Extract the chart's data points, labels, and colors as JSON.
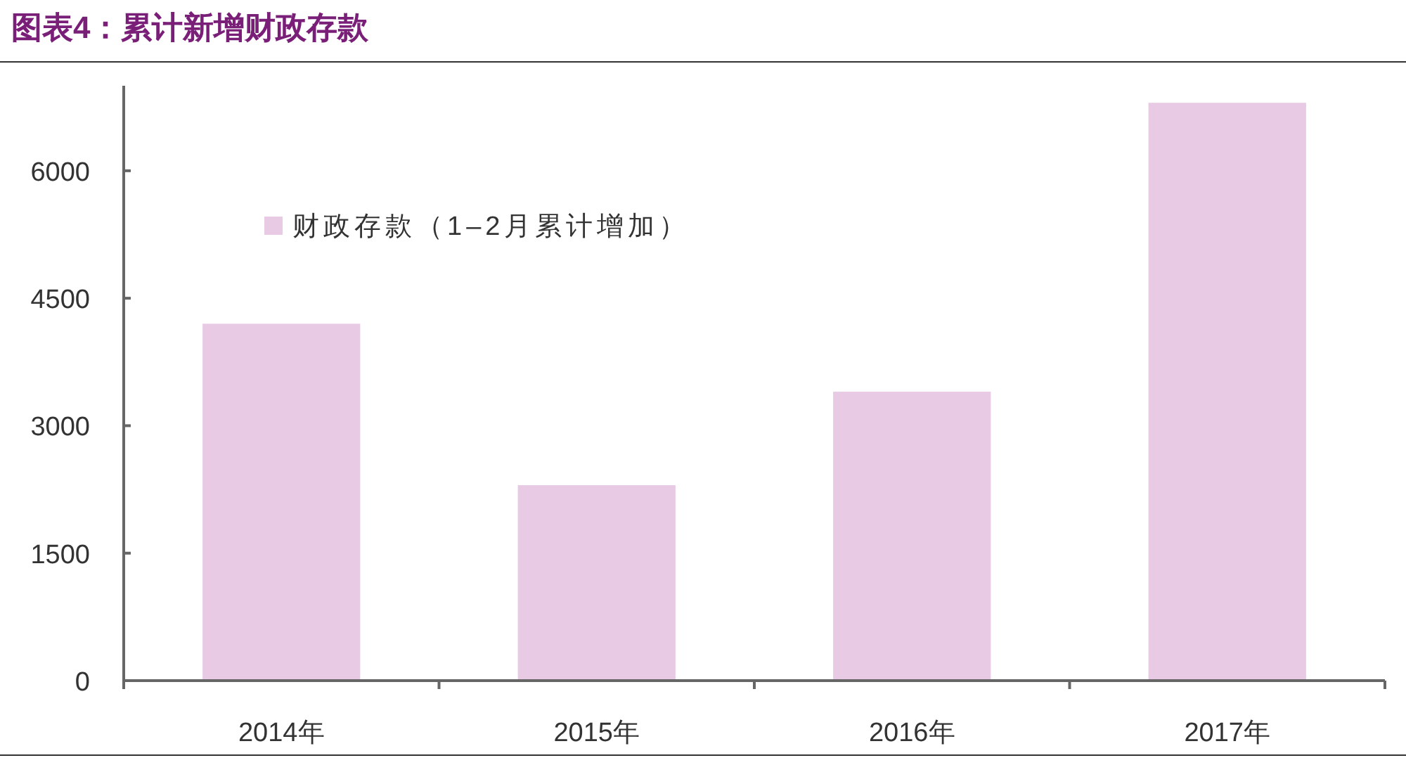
{
  "chart_data": {
    "type": "bar",
    "title": "图表4：累计新增财政存款",
    "categories": [
      "2014年",
      "2015年",
      "2016年",
      "2017年"
    ],
    "series": [
      {
        "name": "财政存款（1–2月累计增加）",
        "color": "#e8cae4",
        "values": [
          4200,
          2300,
          3400,
          6800
        ]
      }
    ],
    "ylim": [
      0,
      7000
    ],
    "yticks": [
      0,
      1500,
      3000,
      4500,
      6000
    ],
    "grid": false,
    "legend": "top left"
  }
}
